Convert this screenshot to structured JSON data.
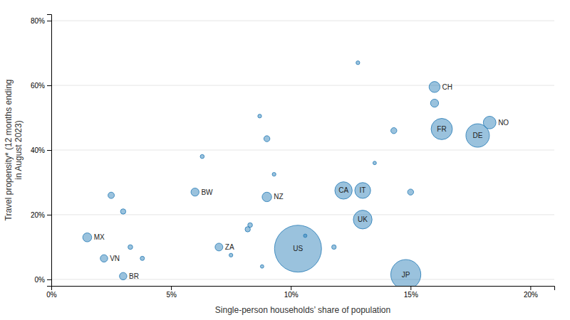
{
  "chart_data": {
    "type": "bubble",
    "xlabel": "Single-person households’ share of population",
    "ylabel": "Travel propensity* (12 months ending\nin August 2023)",
    "xlim": [
      0,
      0.21
    ],
    "ylim": [
      -0.02,
      0.82
    ],
    "xticks": [
      {
        "value": 0.0,
        "label": "0%"
      },
      {
        "value": 0.05,
        "label": "5%"
      },
      {
        "value": 0.1,
        "label": "10%"
      },
      {
        "value": 0.15,
        "label": "15%"
      },
      {
        "value": 0.2,
        "label": "20%"
      }
    ],
    "yticks": [
      {
        "value": 0.0,
        "label": "0%"
      },
      {
        "value": 0.2,
        "label": "20%"
      },
      {
        "value": 0.4,
        "label": "40%"
      },
      {
        "value": 0.6,
        "label": "60%"
      },
      {
        "value": 0.8,
        "label": "80%"
      }
    ],
    "grid": "y",
    "labels": [
      "MX",
      "VN",
      "BR",
      null,
      null,
      null,
      null,
      "BW",
      null,
      "ZA",
      null,
      null,
      null,
      "NZ",
      null,
      null,
      null,
      null,
      "US",
      null,
      null,
      "CA",
      "IT",
      "UK",
      null,
      null,
      "JP",
      null,
      null,
      "CH",
      null,
      "FR",
      "DE",
      "NO"
    ],
    "x": [
      0.015,
      0.022,
      0.03,
      0.025,
      0.03,
      0.033,
      0.038,
      0.06,
      0.063,
      0.07,
      0.075,
      0.082,
      0.083,
      0.09,
      0.087,
      0.09,
      0.093,
      0.088,
      0.103,
      0.106,
      0.118,
      0.122,
      0.13,
      0.13,
      0.128,
      0.135,
      0.148,
      0.143,
      0.15,
      0.16,
      0.16,
      0.163,
      0.178,
      0.183
    ],
    "values": [
      0.13,
      0.065,
      0.01,
      0.26,
      0.21,
      0.1,
      0.065,
      0.27,
      0.38,
      0.1,
      0.075,
      0.155,
      0.168,
      0.255,
      0.505,
      0.435,
      0.325,
      0.04,
      0.095,
      0.135,
      0.1,
      0.275,
      0.275,
      0.185,
      0.67,
      0.36,
      0.015,
      0.46,
      0.27,
      0.595,
      0.545,
      0.465,
      0.445,
      0.485
    ],
    "sizes": [
      80,
      55,
      55,
      40,
      28,
      22,
      18,
      65,
      16,
      60,
      14,
      28,
      22,
      90,
      14,
      36,
      14,
      12,
      2200,
      12,
      20,
      300,
      250,
      350,
      14,
      12,
      900,
      36,
      36,
      120,
      65,
      450,
      550,
      160
    ]
  }
}
